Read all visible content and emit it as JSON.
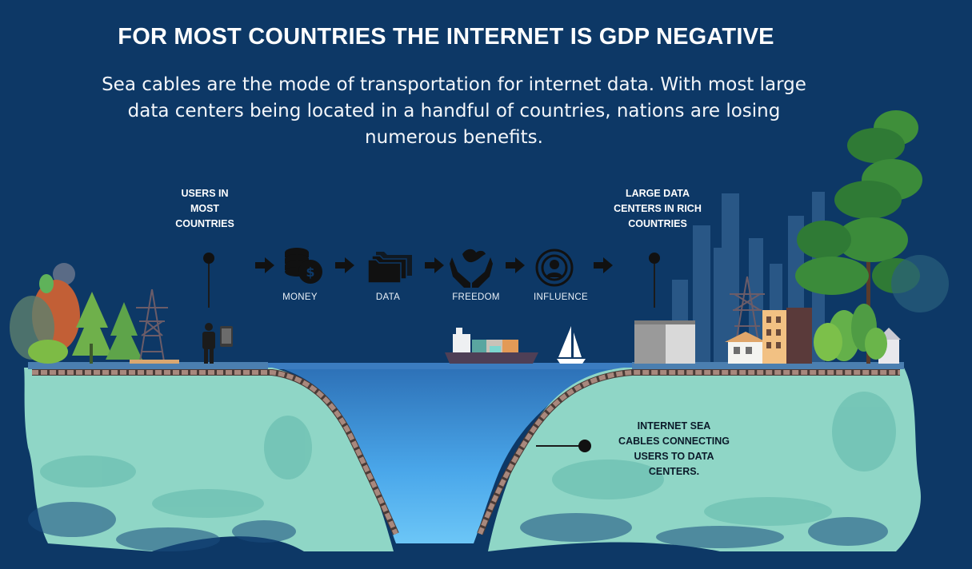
{
  "header": {
    "title": "FOR MOST COUNTRIES THE INTERNET IS GDP NEGATIVE",
    "subtitle_lines": [
      "Sea cables are the mode of transportation for internet data. With most large",
      "data centers being located in a handful of countries, nations are losing",
      "numerous benefits."
    ]
  },
  "callouts": {
    "users": [
      "USERS IN",
      "MOST",
      "COUNTRIES"
    ],
    "datacenters": [
      "LARGE DATA",
      "CENTERS IN RICH",
      "COUNTRIES"
    ],
    "cables": [
      "INTERNET SEA",
      "CABLES CONNECTING",
      "USERS TO DATA",
      "CENTERS."
    ]
  },
  "flow": [
    {
      "label": "MONEY",
      "icon": "money-coins-icon"
    },
    {
      "label": "DATA",
      "icon": "folders-icon"
    },
    {
      "label": "FREEDOM",
      "icon": "dove-hands-icon"
    },
    {
      "label": "INFLUENCE",
      "icon": "broadcast-person-icon"
    }
  ],
  "colors": {
    "background": "#0d3866",
    "land": "#8fd6c6",
    "water": "#4fa3e6",
    "cable": "#5a4640"
  }
}
